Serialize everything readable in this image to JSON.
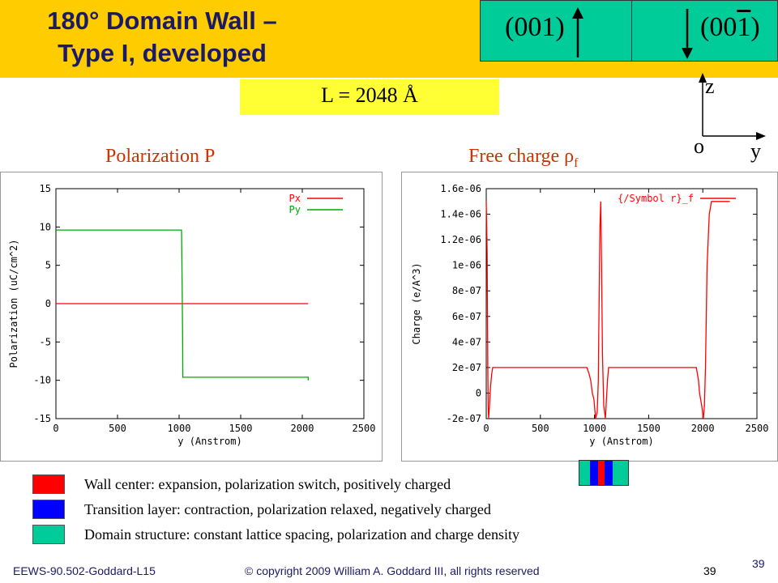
{
  "slide": {
    "title_line1": "180° Domain Wall –",
    "title_line2": "Type I, developed",
    "miller_left": "(001)",
    "miller_right_prefix": "(00",
    "miller_right_digit": "1",
    "miller_right_suffix": ")",
    "length_label": "L = 2048 Å",
    "axis_z": "z",
    "axis_origin": "o",
    "axis_y": "y",
    "plot1_title": "Polarization P",
    "plot2_title_prefix": "Free charge ρ",
    "plot2_title_sub": "f",
    "legend": [
      {
        "text": "Wall center: expansion, polarization switch, positively charged",
        "color": "#ff0000"
      },
      {
        "text": "Transition layer: contraction, polarization relaxed, negatively charged",
        "color": "#0000ff"
      },
      {
        "text": "Domain structure: constant lattice spacing, polarization and charge density",
        "color": "#00cc99"
      }
    ],
    "footer_left": "EEWS-90.502-Goddard-L15",
    "footer_center": "© copyright 2009 William A. Goddard III, all rights reserved",
    "footer_page": "39",
    "corner_page": "39"
  },
  "colors": {
    "title_bg": "#ffcc00",
    "title_text": "#1a1a66",
    "domain": "#00cc99",
    "px": "#ff0000",
    "py": "#00aa00",
    "charge": "#ff0000"
  },
  "chart_data": [
    {
      "type": "line",
      "xlabel": "y (Anstrom)",
      "ylabel": "Polarization (uC/cm^2)",
      "xlim": [
        0,
        2500
      ],
      "ylim": [
        -15,
        15
      ],
      "xticks": [
        0,
        500,
        1000,
        1500,
        2000,
        2500
      ],
      "yticks": [
        -15,
        -10,
        -5,
        0,
        5,
        10,
        15
      ],
      "series": [
        {
          "name": "Px",
          "x": [
            0,
            2048
          ],
          "y": [
            0,
            0
          ]
        },
        {
          "name": "Py",
          "x": [
            0,
            1020,
            1024,
            1028,
            1030,
            1040,
            2048,
            2048
          ],
          "y": [
            9.6,
            9.6,
            4,
            -4,
            -9.6,
            -9.6,
            -9.6,
            -10
          ]
        }
      ]
    },
    {
      "type": "line",
      "xlabel": "y (Anstrom)",
      "ylabel": "Charge (e/A^3)",
      "xlim": [
        0,
        2500
      ],
      "ylim": [
        -2e-07,
        1.6e-06
      ],
      "yticks": [
        -2e-07,
        0,
        2e-07,
        4e-07,
        6e-07,
        8e-07,
        1e-06,
        1.2e-06,
        1.4e-06,
        1.6e-06
      ],
      "ytick_labels": [
        "-2e-07",
        "0",
        "2e-07",
        "4e-07",
        "6e-07",
        "8e-07",
        "1e-06",
        "1.2e-06",
        "1.4e-06",
        "1.6e-06"
      ],
      "xticks": [
        0,
        500,
        1000,
        1500,
        2000,
        2500
      ],
      "series": [
        {
          "name": "{/Symbol r}_f",
          "x": [
            0,
            8,
            14,
            18,
            22,
            30,
            40,
            50,
            60,
            70,
            80,
            930,
            950,
            965,
            980,
            995,
            1010,
            1025,
            1035,
            1040,
            1050,
            1058,
            1065,
            1073,
            1085,
            1100,
            1110,
            1120,
            1130,
            1150,
            1940,
            1960,
            1970,
            1990,
            2005,
            2015,
            2025,
            2040,
            2060,
            2080,
            2100,
            2250
          ],
          "y": [
            1.5e-06,
            1.1e-06,
            2e-07,
            -1e-07,
            -2e-07,
            -1e-07,
            5e-08,
            1.5e-07,
            2e-07,
            2e-07,
            2e-07,
            2e-07,
            1.5e-07,
            1e-07,
            0,
            -5e-08,
            -2e-07,
            -1.5e-07,
            1e-07,
            5e-07,
            1.3e-06,
            1.5e-06,
            1e-06,
            3e-07,
            -1e-07,
            -2e-07,
            -5e-08,
            1e-07,
            2e-07,
            2e-07,
            2e-07,
            1e-07,
            0,
            -1e-07,
            -2e-07,
            -1e-07,
            2e-07,
            1e-06,
            1.4e-06,
            1.5e-06,
            1.5e-06,
            1.5e-06
          ]
        }
      ]
    }
  ]
}
